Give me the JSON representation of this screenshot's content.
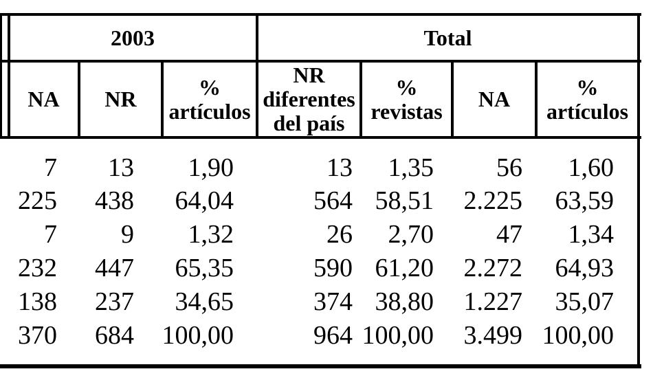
{
  "page": {
    "background": "#ffffff",
    "line_color": "#000000",
    "text_color": "#000000"
  },
  "table": {
    "groups": [
      {
        "label": "2003",
        "span": 3
      },
      {
        "label": "Total",
        "span": 4
      }
    ],
    "columns": [
      {
        "label": "NA"
      },
      {
        "label": "NR"
      },
      {
        "label": "%\nartículos"
      },
      {
        "label": "NR\ndiferentes\ndel país"
      },
      {
        "label": "%\nrevistas"
      },
      {
        "label": "NA"
      },
      {
        "label": "%\nartículos"
      }
    ],
    "rows": [
      [
        "7",
        "13",
        "1,90",
        "13",
        "1,35",
        "56",
        "1,60"
      ],
      [
        "225",
        "438",
        "64,04",
        "564",
        "58,51",
        "2.225",
        "63,59"
      ],
      [
        "7",
        "9",
        "1,32",
        "26",
        "2,70",
        "47",
        "1,34"
      ],
      [
        "232",
        "447",
        "65,35",
        "590",
        "61,20",
        "2.272",
        "64,93"
      ],
      [
        "138",
        "237",
        "34,65",
        "374",
        "38,80",
        "1.227",
        "35,07"
      ],
      [
        "370",
        "684",
        "100,00",
        "964",
        "100,00",
        "3.499",
        "100,00"
      ]
    ]
  }
}
